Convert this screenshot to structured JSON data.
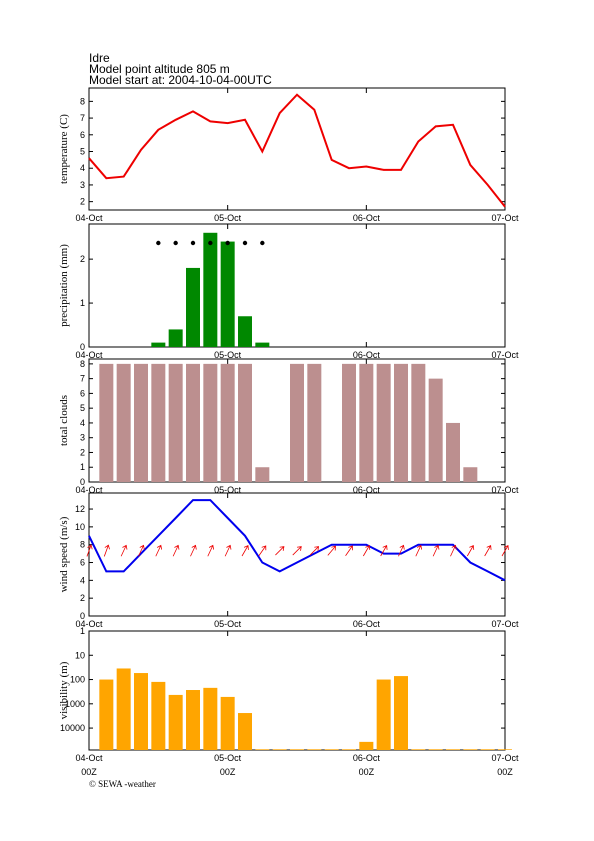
{
  "header": {
    "location": "Idre",
    "altitude": "Model point altitude  805 m",
    "model_start": "Model start at: 2004-10-04-00UTC"
  },
  "footer": "© SEWA -weather",
  "chart_data": [
    {
      "type": "line",
      "ylabel": "temperature (C)",
      "color": "#ee0000",
      "x": [
        0,
        3,
        6,
        9,
        12,
        15,
        18,
        21,
        24,
        27,
        30,
        33,
        36,
        39,
        42,
        45,
        48,
        51,
        54,
        57,
        60,
        63,
        66,
        69,
        72
      ],
      "values": [
        4.6,
        3.4,
        3.5,
        5.1,
        6.3,
        6.9,
        7.4,
        6.8,
        6.7,
        6.9,
        5.0,
        7.3,
        8.4,
        7.5,
        4.5,
        4.0,
        4.1,
        3.9,
        3.9,
        5.6,
        6.5,
        6.6,
        4.2,
        3.0,
        1.7
      ],
      "xlim": [
        0,
        72
      ],
      "xticks": [
        {
          "value": 0,
          "label": "04-Oct"
        },
        {
          "value": 24,
          "label": "05-Oct"
        },
        {
          "value": 48,
          "label": "06-Oct"
        },
        {
          "value": 72,
          "label": "07-Oct"
        }
      ],
      "ylim": [
        1.5,
        8.8
      ],
      "yticks": [
        2,
        3,
        4,
        5,
        6,
        7,
        8
      ]
    },
    {
      "type": "bar",
      "ylabel": "precipitation (mm)",
      "color": "#008800",
      "symbol_color": "#000000",
      "x": [
        12,
        15,
        18,
        21,
        24,
        27,
        30
      ],
      "values": [
        0.1,
        0.4,
        1.8,
        2.6,
        2.4,
        0.7,
        0.1
      ],
      "xlim": [
        0,
        72
      ],
      "xticks": [
        {
          "value": 0,
          "label": "04-Oct"
        },
        {
          "value": 24,
          "label": "05-Oct"
        },
        {
          "value": 48,
          "label": "06-Oct"
        },
        {
          "value": 72,
          "label": "07-Oct"
        }
      ],
      "ylim": [
        0,
        2.8
      ],
      "yticks": [
        0,
        1,
        2
      ]
    },
    {
      "type": "bar",
      "ylabel": "total clouds",
      "color": "#bc8f8f",
      "x": [
        0,
        3,
        6,
        9,
        12,
        15,
        18,
        21,
        24,
        27,
        30,
        33,
        36,
        39,
        42,
        45,
        48,
        51,
        54,
        57,
        60,
        63,
        66,
        69,
        72
      ],
      "values": [
        0,
        8,
        8,
        8,
        8,
        8,
        8,
        8,
        8,
        8,
        1,
        0,
        8,
        8,
        0,
        8,
        8,
        8,
        8,
        8,
        7,
        4,
        1,
        0,
        0
      ],
      "xlim": [
        0,
        72
      ],
      "xticks": [
        {
          "value": 0,
          "label": "04-Oct"
        },
        {
          "value": 24,
          "label": "05-Oct"
        },
        {
          "value": 48,
          "label": "06-Oct"
        },
        {
          "value": 72,
          "label": "07-Oct"
        }
      ],
      "ylim": [
        0,
        8.33
      ],
      "yticks": [
        0,
        1,
        2,
        3,
        4,
        5,
        6,
        7,
        8
      ]
    },
    {
      "type": "line",
      "ylabel": "wind speed (m/s)",
      "color": "#0000ee",
      "arrow_color": "#ee0000",
      "x": [
        0,
        3,
        6,
        9,
        12,
        15,
        18,
        21,
        24,
        27,
        30,
        33,
        36,
        39,
        42,
        45,
        48,
        51,
        54,
        57,
        60,
        63,
        66,
        69,
        72
      ],
      "values": [
        9,
        5,
        5,
        7,
        9,
        11,
        13,
        13,
        11,
        9,
        6,
        5,
        6,
        7,
        8,
        8,
        8,
        7,
        7,
        8,
        8,
        8,
        6,
        5,
        4
      ],
      "wind_direction": [
        200,
        200,
        205,
        205,
        205,
        205,
        205,
        205,
        205,
        210,
        215,
        225,
        225,
        225,
        220,
        215,
        210,
        210,
        205,
        205,
        205,
        205,
        210,
        210,
        210
      ],
      "xlim": [
        0,
        72
      ],
      "xticks": [
        {
          "value": 0,
          "label": "04-Oct"
        },
        {
          "value": 24,
          "label": "05-Oct"
        },
        {
          "value": 48,
          "label": "06-Oct"
        },
        {
          "value": 72,
          "label": "07-Oct"
        }
      ],
      "ylim": [
        0,
        13.8
      ],
      "yticks": [
        0,
        2,
        4,
        6,
        8,
        10,
        12
      ]
    },
    {
      "type": "bar",
      "ylabel": "visibility (m)",
      "color": "#ffa500",
      "log_scale": true,
      "y_inverted": true,
      "x": [
        3,
        6,
        9,
        12,
        15,
        18,
        21,
        24,
        27,
        30,
        33,
        36,
        39,
        42,
        45,
        48,
        51,
        54,
        57,
        60,
        63,
        66,
        69,
        72
      ],
      "values": [
        100,
        35,
        54,
        125,
        430,
        270,
        220,
        520,
        2400,
        75000,
        75000,
        75000,
        75000,
        75000,
        75000,
        37000,
        100,
        72,
        75000,
        75000,
        75000,
        75000,
        75000,
        75000
      ],
      "xlim": [
        0,
        72
      ],
      "xticks": [
        {
          "value": 0,
          "label": "04-Oct"
        },
        {
          "value": 24,
          "label": "05-Oct"
        },
        {
          "value": 48,
          "label": "06-Oct"
        },
        {
          "value": 72,
          "label": "07-Oct"
        }
      ],
      "time_labels": [
        "00Z",
        "00Z",
        "00Z",
        "00Z"
      ],
      "ylim": [
        1,
        80000
      ],
      "yticks": [
        1,
        10,
        100,
        1000,
        10000
      ]
    }
  ]
}
